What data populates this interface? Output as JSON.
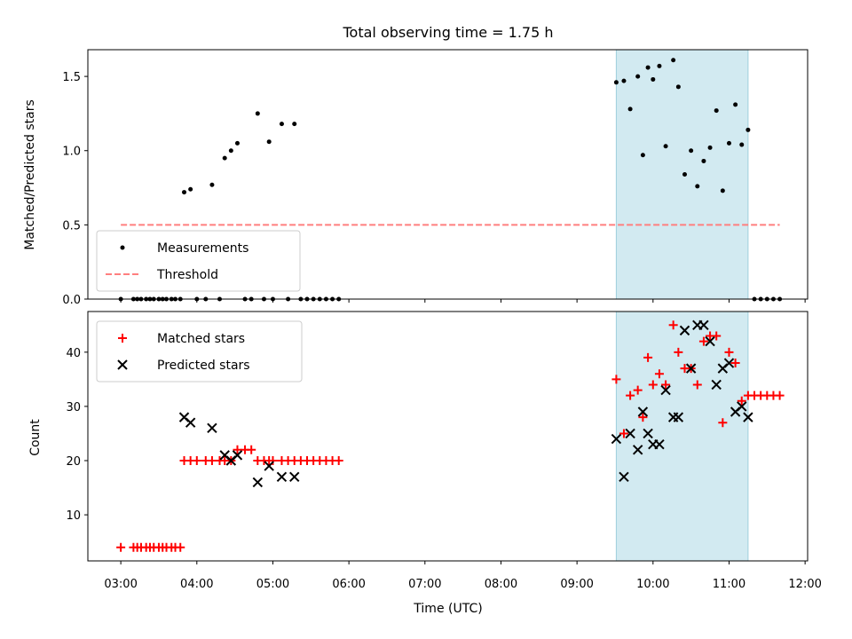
{
  "chart_data": [
    {
      "type": "scatter",
      "title": "Total observing time = 1.75 h",
      "xlabel": "",
      "ylabel": "Matched/Predicted stars",
      "xlim": [
        "02:34",
        "12:02"
      ],
      "ylim": [
        0,
        1.68
      ],
      "yticks": [
        "0.0",
        "0.5",
        "1.0",
        "1.5"
      ],
      "shaded_region": {
        "from": "09:31",
        "to": "11:15",
        "color": "#add8e6"
      },
      "grid": false,
      "legend_position": "lower-left",
      "series": [
        {
          "name": "Measurements",
          "marker": "dot",
          "color": "#000000",
          "points": [
            [
              "03:00",
              0
            ],
            [
              "03:10",
              0
            ],
            [
              "03:13",
              0
            ],
            [
              "03:16",
              0
            ],
            [
              "03:20",
              0
            ],
            [
              "03:23",
              0
            ],
            [
              "03:26",
              0
            ],
            [
              "03:30",
              0
            ],
            [
              "03:33",
              0
            ],
            [
              "03:36",
              0
            ],
            [
              "03:40",
              0
            ],
            [
              "03:43",
              0
            ],
            [
              "03:47",
              0
            ],
            [
              "03:50",
              0.72
            ],
            [
              "03:55",
              0.74
            ],
            [
              "04:00",
              0
            ],
            [
              "04:07",
              0
            ],
            [
              "04:12",
              0.77
            ],
            [
              "04:18",
              0
            ],
            [
              "04:22",
              0.95
            ],
            [
              "04:27",
              1.0
            ],
            [
              "04:32",
              1.05
            ],
            [
              "04:38",
              0
            ],
            [
              "04:43",
              0
            ],
            [
              "04:48",
              1.25
            ],
            [
              "04:53",
              0
            ],
            [
              "04:57",
              1.06
            ],
            [
              "05:00",
              0
            ],
            [
              "05:07",
              1.18
            ],
            [
              "05:12",
              0
            ],
            [
              "05:17",
              1.18
            ],
            [
              "05:22",
              0
            ],
            [
              "05:27",
              0
            ],
            [
              "05:32",
              0
            ],
            [
              "05:37",
              0
            ],
            [
              "05:42",
              0
            ],
            [
              "05:47",
              0
            ],
            [
              "05:52",
              0
            ],
            [
              "09:31",
              1.46
            ],
            [
              "09:37",
              1.47
            ],
            [
              "09:42",
              1.28
            ],
            [
              "09:48",
              1.5
            ],
            [
              "09:52",
              0.97
            ],
            [
              "09:56",
              1.56
            ],
            [
              "10:00",
              1.48
            ],
            [
              "10:05",
              1.57
            ],
            [
              "10:10",
              1.03
            ],
            [
              "10:16",
              1.61
            ],
            [
              "10:20",
              1.43
            ],
            [
              "10:25",
              0.84
            ],
            [
              "10:30",
              1.0
            ],
            [
              "10:35",
              0.76
            ],
            [
              "10:40",
              0.93
            ],
            [
              "10:45",
              1.02
            ],
            [
              "10:50",
              1.27
            ],
            [
              "10:55",
              0.73
            ],
            [
              "11:00",
              1.05
            ],
            [
              "11:05",
              1.31
            ],
            [
              "11:10",
              1.04
            ],
            [
              "11:15",
              1.14
            ],
            [
              "11:20",
              0
            ],
            [
              "11:25",
              0
            ],
            [
              "11:30",
              0
            ],
            [
              "11:35",
              0
            ],
            [
              "11:40",
              0
            ]
          ]
        },
        {
          "name": "Threshold",
          "line": "dashed",
          "color": "#ff7f7f",
          "points": [
            [
              "03:00",
              0.5
            ],
            [
              "11:40",
              0.5
            ]
          ]
        }
      ]
    },
    {
      "type": "scatter",
      "title": "",
      "xlabel": "Time (UTC)",
      "ylabel": "Count",
      "xlim": [
        "02:34",
        "12:02"
      ],
      "ylim": [
        1.5,
        47.5
      ],
      "yticks": [
        "10",
        "20",
        "30",
        "40"
      ],
      "xticks": [
        "03:00",
        "04:00",
        "05:00",
        "06:00",
        "07:00",
        "08:00",
        "09:00",
        "10:00",
        "11:00",
        "12:00"
      ],
      "shaded_region": {
        "from": "09:31",
        "to": "11:15",
        "color": "#add8e6"
      },
      "grid": false,
      "legend_position": "upper-left",
      "series": [
        {
          "name": "Matched stars",
          "marker": "plus",
          "color": "#ff0000",
          "points": [
            [
              "03:00",
              4
            ],
            [
              "03:10",
              4
            ],
            [
              "03:13",
              4
            ],
            [
              "03:16",
              4
            ],
            [
              "03:20",
              4
            ],
            [
              "03:23",
              4
            ],
            [
              "03:26",
              4
            ],
            [
              "03:30",
              4
            ],
            [
              "03:33",
              4
            ],
            [
              "03:36",
              4
            ],
            [
              "03:40",
              4
            ],
            [
              "03:43",
              4
            ],
            [
              "03:47",
              4
            ],
            [
              "03:50",
              20
            ],
            [
              "03:55",
              20
            ],
            [
              "04:00",
              20
            ],
            [
              "04:07",
              20
            ],
            [
              "04:12",
              20
            ],
            [
              "04:18",
              20
            ],
            [
              "04:22",
              20
            ],
            [
              "04:27",
              20
            ],
            [
              "04:32",
              22
            ],
            [
              "04:38",
              22
            ],
            [
              "04:43",
              22
            ],
            [
              "04:48",
              20
            ],
            [
              "04:53",
              20
            ],
            [
              "04:57",
              20
            ],
            [
              "05:00",
              20
            ],
            [
              "05:07",
              20
            ],
            [
              "05:12",
              20
            ],
            [
              "05:17",
              20
            ],
            [
              "05:22",
              20
            ],
            [
              "05:27",
              20
            ],
            [
              "05:32",
              20
            ],
            [
              "05:37",
              20
            ],
            [
              "05:42",
              20
            ],
            [
              "05:47",
              20
            ],
            [
              "05:52",
              20
            ],
            [
              "09:31",
              35
            ],
            [
              "09:37",
              25
            ],
            [
              "09:42",
              32
            ],
            [
              "09:48",
              33
            ],
            [
              "09:52",
              28
            ],
            [
              "09:56",
              39
            ],
            [
              "10:00",
              34
            ],
            [
              "10:05",
              36
            ],
            [
              "10:10",
              34
            ],
            [
              "10:16",
              45
            ],
            [
              "10:20",
              40
            ],
            [
              "10:25",
              37
            ],
            [
              "10:30",
              37
            ],
            [
              "10:35",
              34
            ],
            [
              "10:40",
              42
            ],
            [
              "10:45",
              43
            ],
            [
              "10:50",
              43
            ],
            [
              "10:55",
              27
            ],
            [
              "11:00",
              40
            ],
            [
              "11:05",
              38
            ],
            [
              "11:10",
              31
            ],
            [
              "11:15",
              32
            ],
            [
              "11:20",
              32
            ],
            [
              "11:25",
              32
            ],
            [
              "11:30",
              32
            ],
            [
              "11:35",
              32
            ],
            [
              "11:40",
              32
            ]
          ]
        },
        {
          "name": "Predicted stars",
          "marker": "x",
          "color": "#000000",
          "points": [
            [
              "03:50",
              28
            ],
            [
              "03:55",
              27
            ],
            [
              "04:12",
              26
            ],
            [
              "04:22",
              21
            ],
            [
              "04:27",
              20
            ],
            [
              "04:32",
              21
            ],
            [
              "04:48",
              16
            ],
            [
              "04:57",
              19
            ],
            [
              "05:07",
              17
            ],
            [
              "05:17",
              17
            ],
            [
              "09:31",
              24
            ],
            [
              "09:37",
              17
            ],
            [
              "09:42",
              25
            ],
            [
              "09:48",
              22
            ],
            [
              "09:52",
              29
            ],
            [
              "09:56",
              25
            ],
            [
              "10:00",
              23
            ],
            [
              "10:05",
              23
            ],
            [
              "10:10",
              33
            ],
            [
              "10:16",
              28
            ],
            [
              "10:20",
              28
            ],
            [
              "10:25",
              44
            ],
            [
              "10:30",
              37
            ],
            [
              "10:35",
              45
            ],
            [
              "10:40",
              45
            ],
            [
              "10:45",
              42
            ],
            [
              "10:50",
              34
            ],
            [
              "10:55",
              37
            ],
            [
              "11:00",
              38
            ],
            [
              "11:05",
              29
            ],
            [
              "11:10",
              30
            ],
            [
              "11:15",
              28
            ]
          ]
        }
      ]
    }
  ]
}
